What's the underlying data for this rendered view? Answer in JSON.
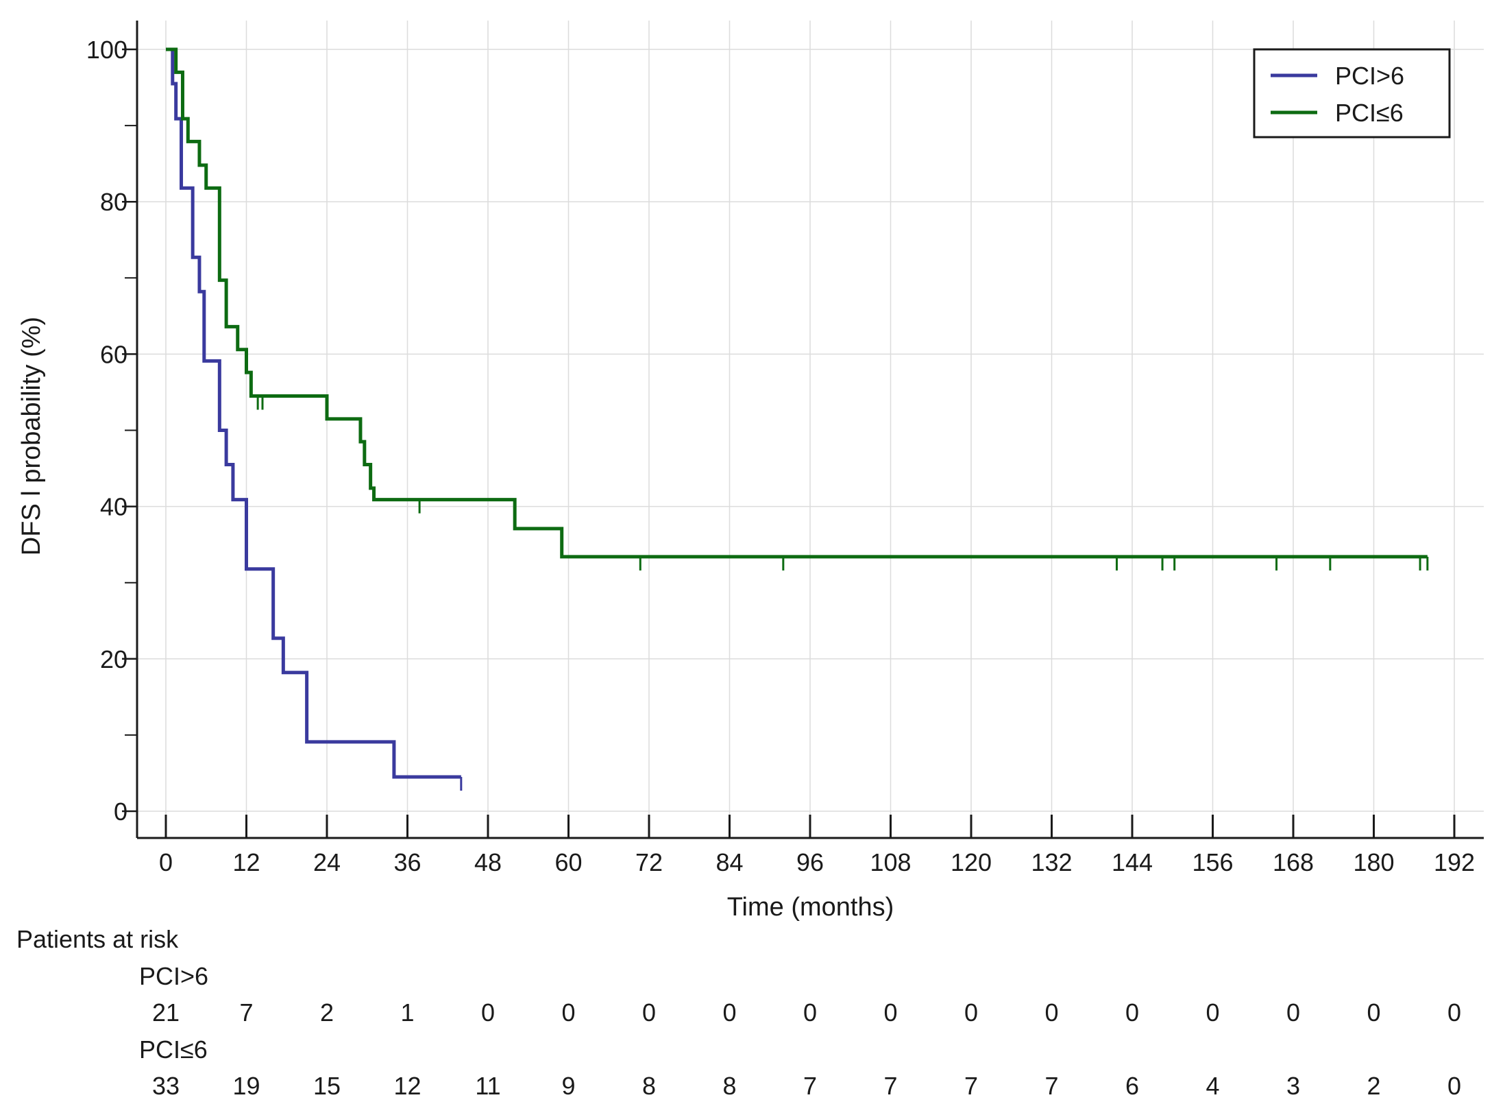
{
  "chart_data": {
    "type": "line",
    "subtype": "kaplan-meier",
    "title": "",
    "xlabel": "Time (months)",
    "ylabel": "DFS  l probability (%)",
    "xlim": [
      -2,
      196
    ],
    "ylim": [
      -4,
      104
    ],
    "x_ticks": [
      0,
      12,
      24,
      36,
      48,
      60,
      72,
      84,
      96,
      108,
      120,
      132,
      144,
      156,
      168,
      180,
      192
    ],
    "y_ticks": [
      0,
      20,
      40,
      60,
      80,
      100
    ],
    "y_minor_ticks": [
      10,
      30,
      50,
      70,
      90
    ],
    "grid": true,
    "legend_position": "top-right",
    "series": [
      {
        "name": "PCI>6",
        "color": "#3a3a9e",
        "steps": [
          [
            0,
            100
          ],
          [
            1,
            95.5
          ],
          [
            1.5,
            90.9
          ],
          [
            2.3,
            81.8
          ],
          [
            4,
            72.7
          ],
          [
            5,
            68.2
          ],
          [
            5.7,
            59.1
          ],
          [
            8,
            50
          ],
          [
            9,
            45.5
          ],
          [
            10,
            40.9
          ],
          [
            12,
            31.8
          ],
          [
            16,
            22.7
          ],
          [
            17.5,
            18.2
          ],
          [
            21,
            9.1
          ],
          [
            34,
            4.5
          ],
          [
            44,
            4.5
          ]
        ],
        "censor_times": [
          44
        ],
        "censor_values": [
          4.5
        ]
      },
      {
        "name": "PCI≤6",
        "color": "#0d6b12",
        "steps": [
          [
            0,
            100
          ],
          [
            1,
            100
          ],
          [
            1.5,
            97
          ],
          [
            2.5,
            90.9
          ],
          [
            3.3,
            87.9
          ],
          [
            5,
            84.8
          ],
          [
            6,
            81.8
          ],
          [
            8,
            69.7
          ],
          [
            9,
            63.6
          ],
          [
            10.7,
            60.6
          ],
          [
            12,
            57.6
          ],
          [
            12.7,
            54.5
          ],
          [
            24,
            51.5
          ],
          [
            29,
            48.5
          ],
          [
            29.6,
            45.5
          ],
          [
            30.5,
            42.4
          ],
          [
            31,
            40.9
          ],
          [
            52,
            37.1
          ],
          [
            59,
            33.4
          ],
          [
            188,
            33.4
          ]
        ],
        "censor_times": [
          13.7,
          14.4,
          37.8,
          70.7,
          92,
          141.7,
          148.5,
          150.3,
          165.5,
          173.5,
          186.9,
          188
        ],
        "censor_values": [
          54.5,
          54.5,
          40.9,
          33.4,
          33.4,
          33.4,
          33.4,
          33.4,
          33.4,
          33.4,
          33.4,
          33.4
        ]
      }
    ],
    "risk_table": {
      "title": "Patients at risk",
      "times": [
        0,
        12,
        24,
        36,
        48,
        60,
        72,
        84,
        96,
        108,
        120,
        132,
        144,
        156,
        168,
        180,
        192
      ],
      "groups": [
        {
          "name": "PCI>6",
          "counts": [
            21,
            7,
            2,
            1,
            0,
            0,
            0,
            0,
            0,
            0,
            0,
            0,
            0,
            0,
            0,
            0,
            0
          ]
        },
        {
          "name": "PCI≤6",
          "counts": [
            33,
            19,
            15,
            12,
            11,
            9,
            8,
            8,
            7,
            7,
            7,
            7,
            6,
            4,
            3,
            2,
            0
          ]
        }
      ]
    }
  }
}
